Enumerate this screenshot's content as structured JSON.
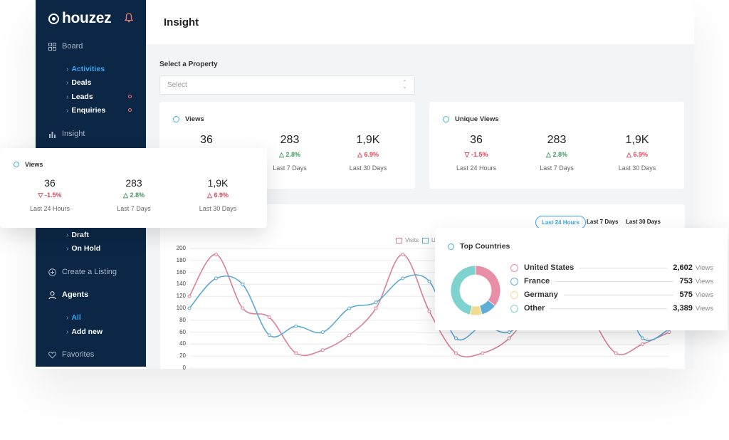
{
  "brand": {
    "name": "houzez"
  },
  "sidebar": {
    "board_label": "Board",
    "board_items": [
      {
        "label": "Activities",
        "active": true,
        "badge": false
      },
      {
        "label": "Deals",
        "active": false,
        "badge": false
      },
      {
        "label": "Leads",
        "active": false,
        "badge": true
      },
      {
        "label": "Enquiries",
        "active": false,
        "badge": true
      }
    ],
    "insight_label": "Insight",
    "listing_items": [
      {
        "label": "Draft"
      },
      {
        "label": "On Hold"
      }
    ],
    "create_listing_label": "Create a Listing",
    "agents_label": "Agents",
    "agent_items": [
      {
        "label": "All",
        "active": true
      },
      {
        "label": "Add new",
        "active": false
      }
    ],
    "favorites_label": "Favorites"
  },
  "header": {
    "title": "Insight"
  },
  "property_select": {
    "label": "Select a Property",
    "placeholder": "Select"
  },
  "views_card": {
    "title": "Views",
    "stats": [
      {
        "value": "36",
        "change": "",
        "label": ""
      },
      {
        "value": "283",
        "change": "2.8%",
        "direction": "up",
        "label": "Last 7 Days"
      },
      {
        "value": "1,9K",
        "change": "6.9%",
        "direction": "up-red",
        "label": "Last 30 Days"
      }
    ]
  },
  "unique_views_card": {
    "title": "Unique Views",
    "stats": [
      {
        "value": "36",
        "change": "-1.5%",
        "direction": "down",
        "label": "Last 24 Hours"
      },
      {
        "value": "283",
        "change": "2.8%",
        "direction": "up",
        "label": "Last 7 Days"
      },
      {
        "value": "1,9K",
        "change": "6.9%",
        "direction": "up-red",
        "label": "Last 30 Days"
      }
    ]
  },
  "floating_views": {
    "title": "Views",
    "stats": [
      {
        "value": "36",
        "change": "-1.5%",
        "direction": "down",
        "label": "Last 24 Hours"
      },
      {
        "value": "283",
        "change": "2.8%",
        "direction": "up",
        "label": "Last 7 Days"
      },
      {
        "value": "1,9K",
        "change": "6.9%",
        "direction": "up-red",
        "label": "Last 30 Days"
      }
    ]
  },
  "range_tabs": [
    {
      "label": "Last 24 Hours",
      "active": true
    },
    {
      "label": "Last 7 Days",
      "active": false
    },
    {
      "label": "Last 30 Days",
      "active": false
    }
  ],
  "colors": {
    "visits": "#d9809b",
    "unique": "#5ba8d4",
    "accent": "#3aa4f2",
    "sidebar": "#0b2745"
  },
  "chart_data": {
    "type": "line",
    "yticks": [
      "200",
      "180",
      "160",
      "140",
      "120",
      "100",
      "80",
      "60",
      "40",
      "20",
      "0"
    ],
    "ylim": [
      0,
      200
    ],
    "series": [
      {
        "name": "Visits",
        "color": "#d9809b",
        "values": [
          120,
          190,
          100,
          85,
          25,
          30,
          55,
          100,
          190,
          95,
          25,
          25,
          50,
          110,
          190,
          95,
          25,
          40,
          60
        ]
      },
      {
        "name": "U",
        "color": "#5ba8d4",
        "values": [
          100,
          150,
          140,
          55,
          70,
          60,
          100,
          110,
          150,
          145,
          50,
          70,
          60,
          100,
          110,
          150,
          145,
          50,
          65
        ]
      }
    ]
  },
  "top_countries": {
    "title": "Top Countries",
    "rows": [
      {
        "name": "United States",
        "value": "2,602",
        "unit": "Views",
        "color": "#e88ea6"
      },
      {
        "name": "France",
        "value": "753",
        "unit": "Views",
        "color": "#5eaed8"
      },
      {
        "name": "Germany",
        "value": "575",
        "unit": "Views",
        "color": "#f2dc94"
      },
      {
        "name": "Other",
        "value": "3,389",
        "unit": "Views",
        "color": "#7fd3cf"
      }
    ],
    "donut_values": [
      2602,
      753,
      575,
      3389
    ]
  }
}
